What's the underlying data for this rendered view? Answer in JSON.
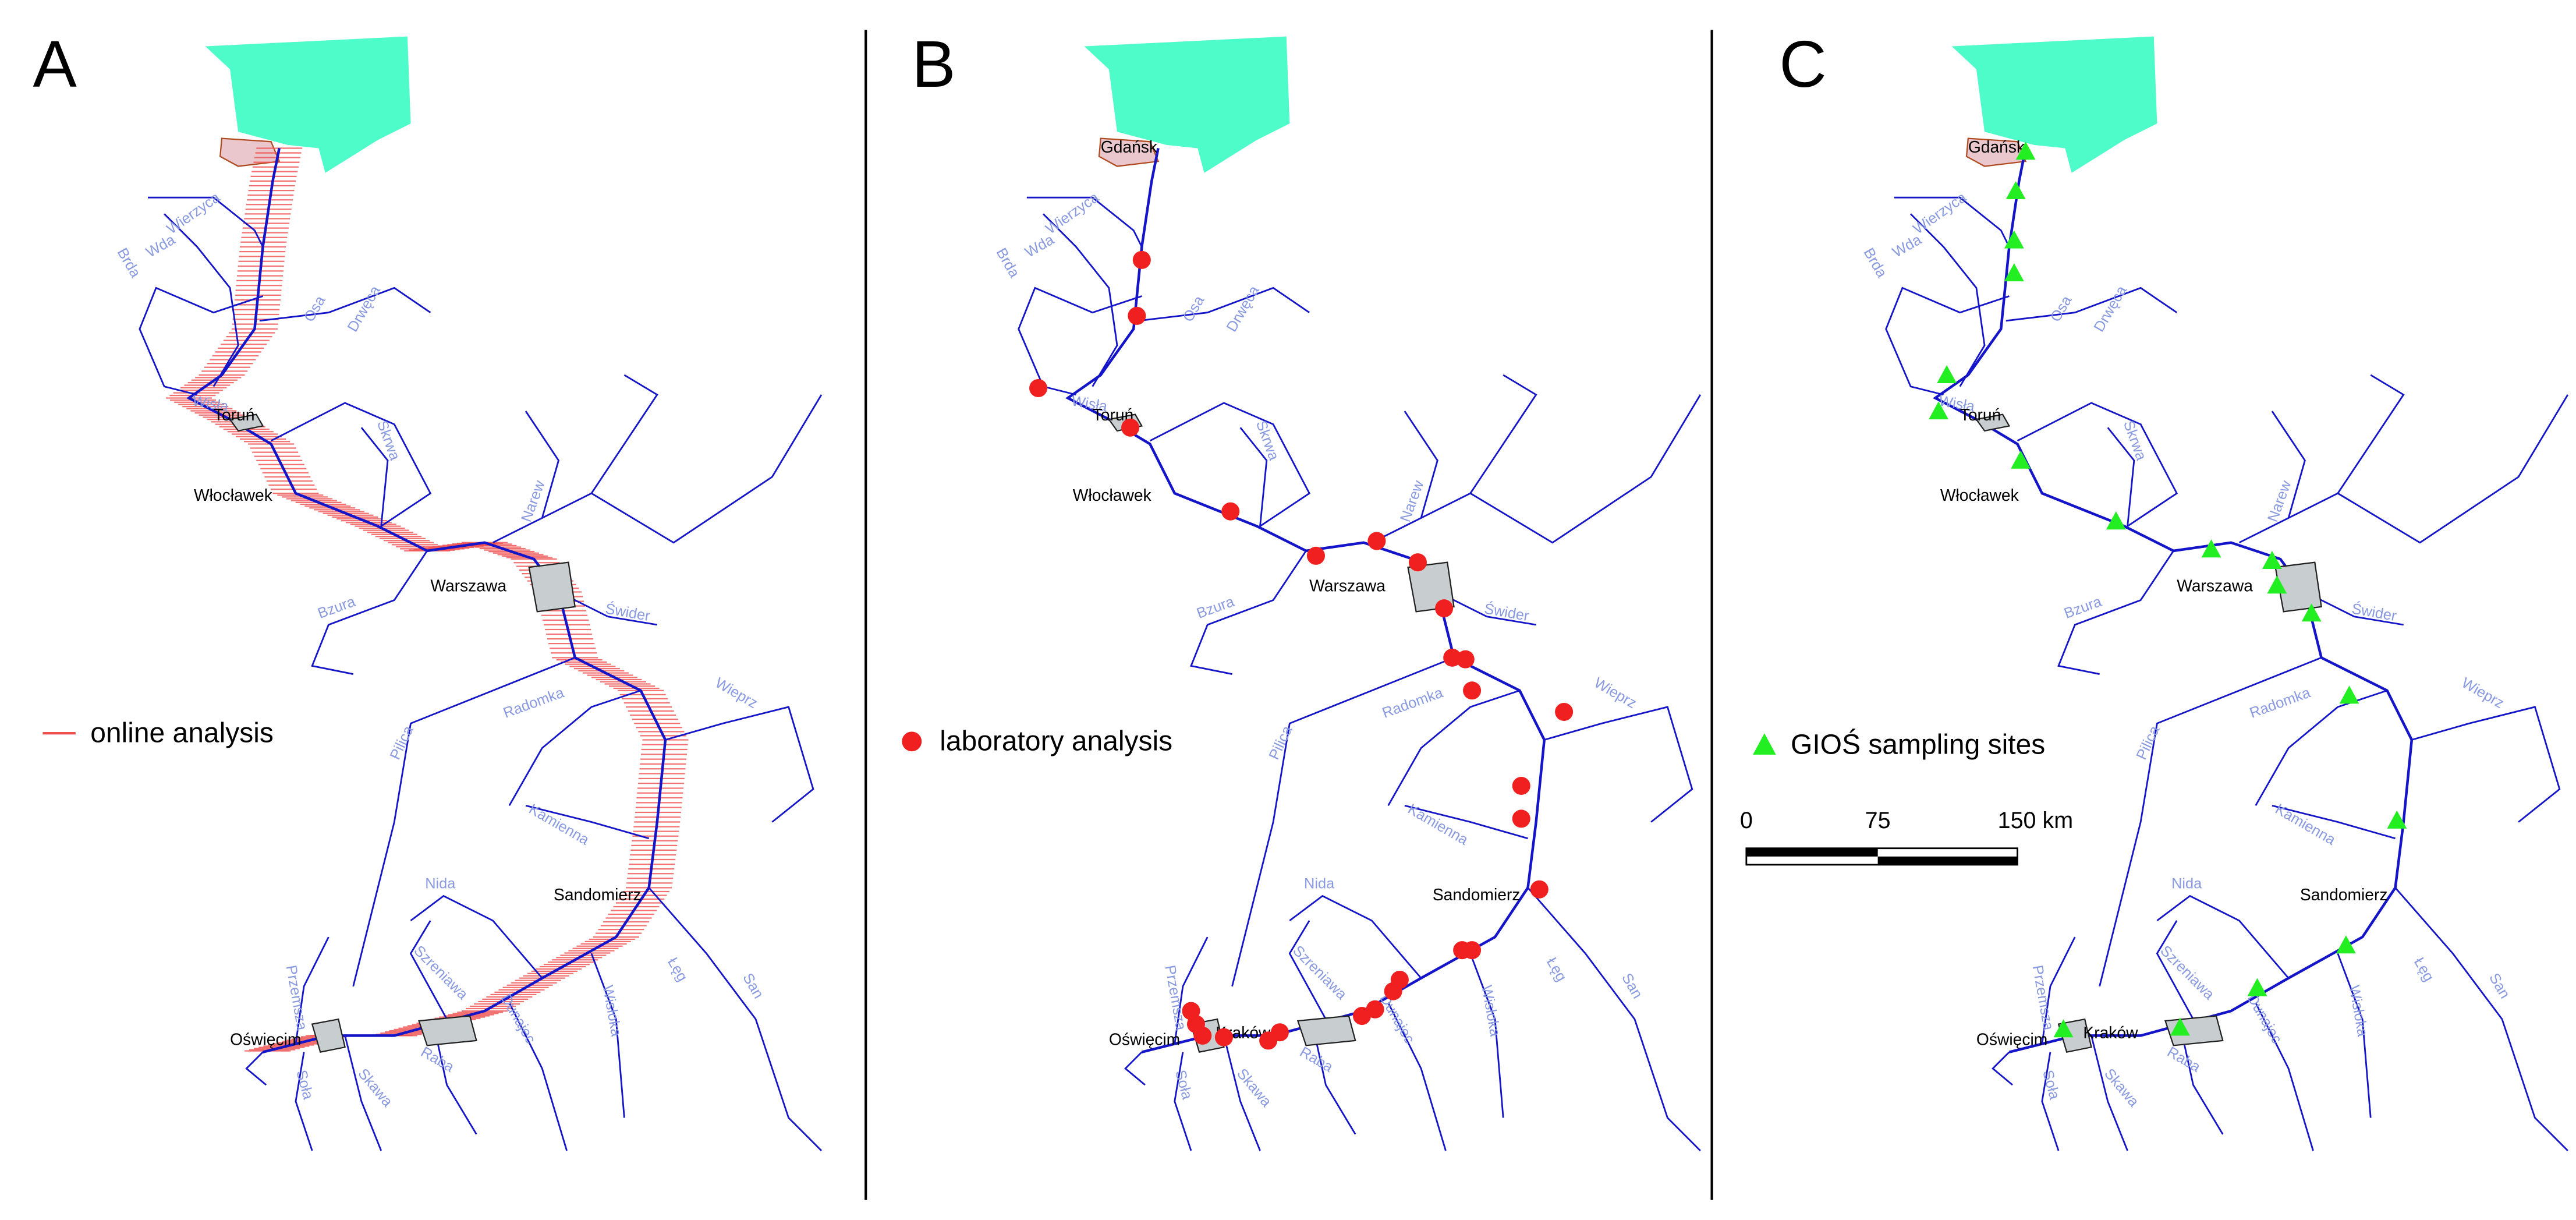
{
  "panels": [
    {
      "label": "A",
      "legend": "online analysis"
    },
    {
      "label": "B",
      "legend": "laboratory analysis"
    },
    {
      "label": "C",
      "legend": "GIOŚ sampling sites"
    }
  ],
  "cities": [
    "Gdańsk",
    "Toruń",
    "Włocławek",
    "Warszawa",
    "Sandomierz",
    "Oświęcim",
    "Kraków"
  ],
  "rivers": [
    "Wierzyca",
    "Wda",
    "Brda",
    "Osa",
    "Drwęca",
    "Wisła",
    "Skrwa",
    "Narew",
    "Bzura",
    "Świder",
    "Pilica",
    "Radomka",
    "Wieprz",
    "Kamienna",
    "Nida",
    "Szreniawa",
    "Przemsza",
    "Dunajec",
    "Wisłoka",
    "Łęg",
    "San",
    "Soła",
    "Skawa",
    "Raba"
  ],
  "scale_bar": {
    "labels": [
      "0",
      "75",
      "150 km"
    ]
  }
}
